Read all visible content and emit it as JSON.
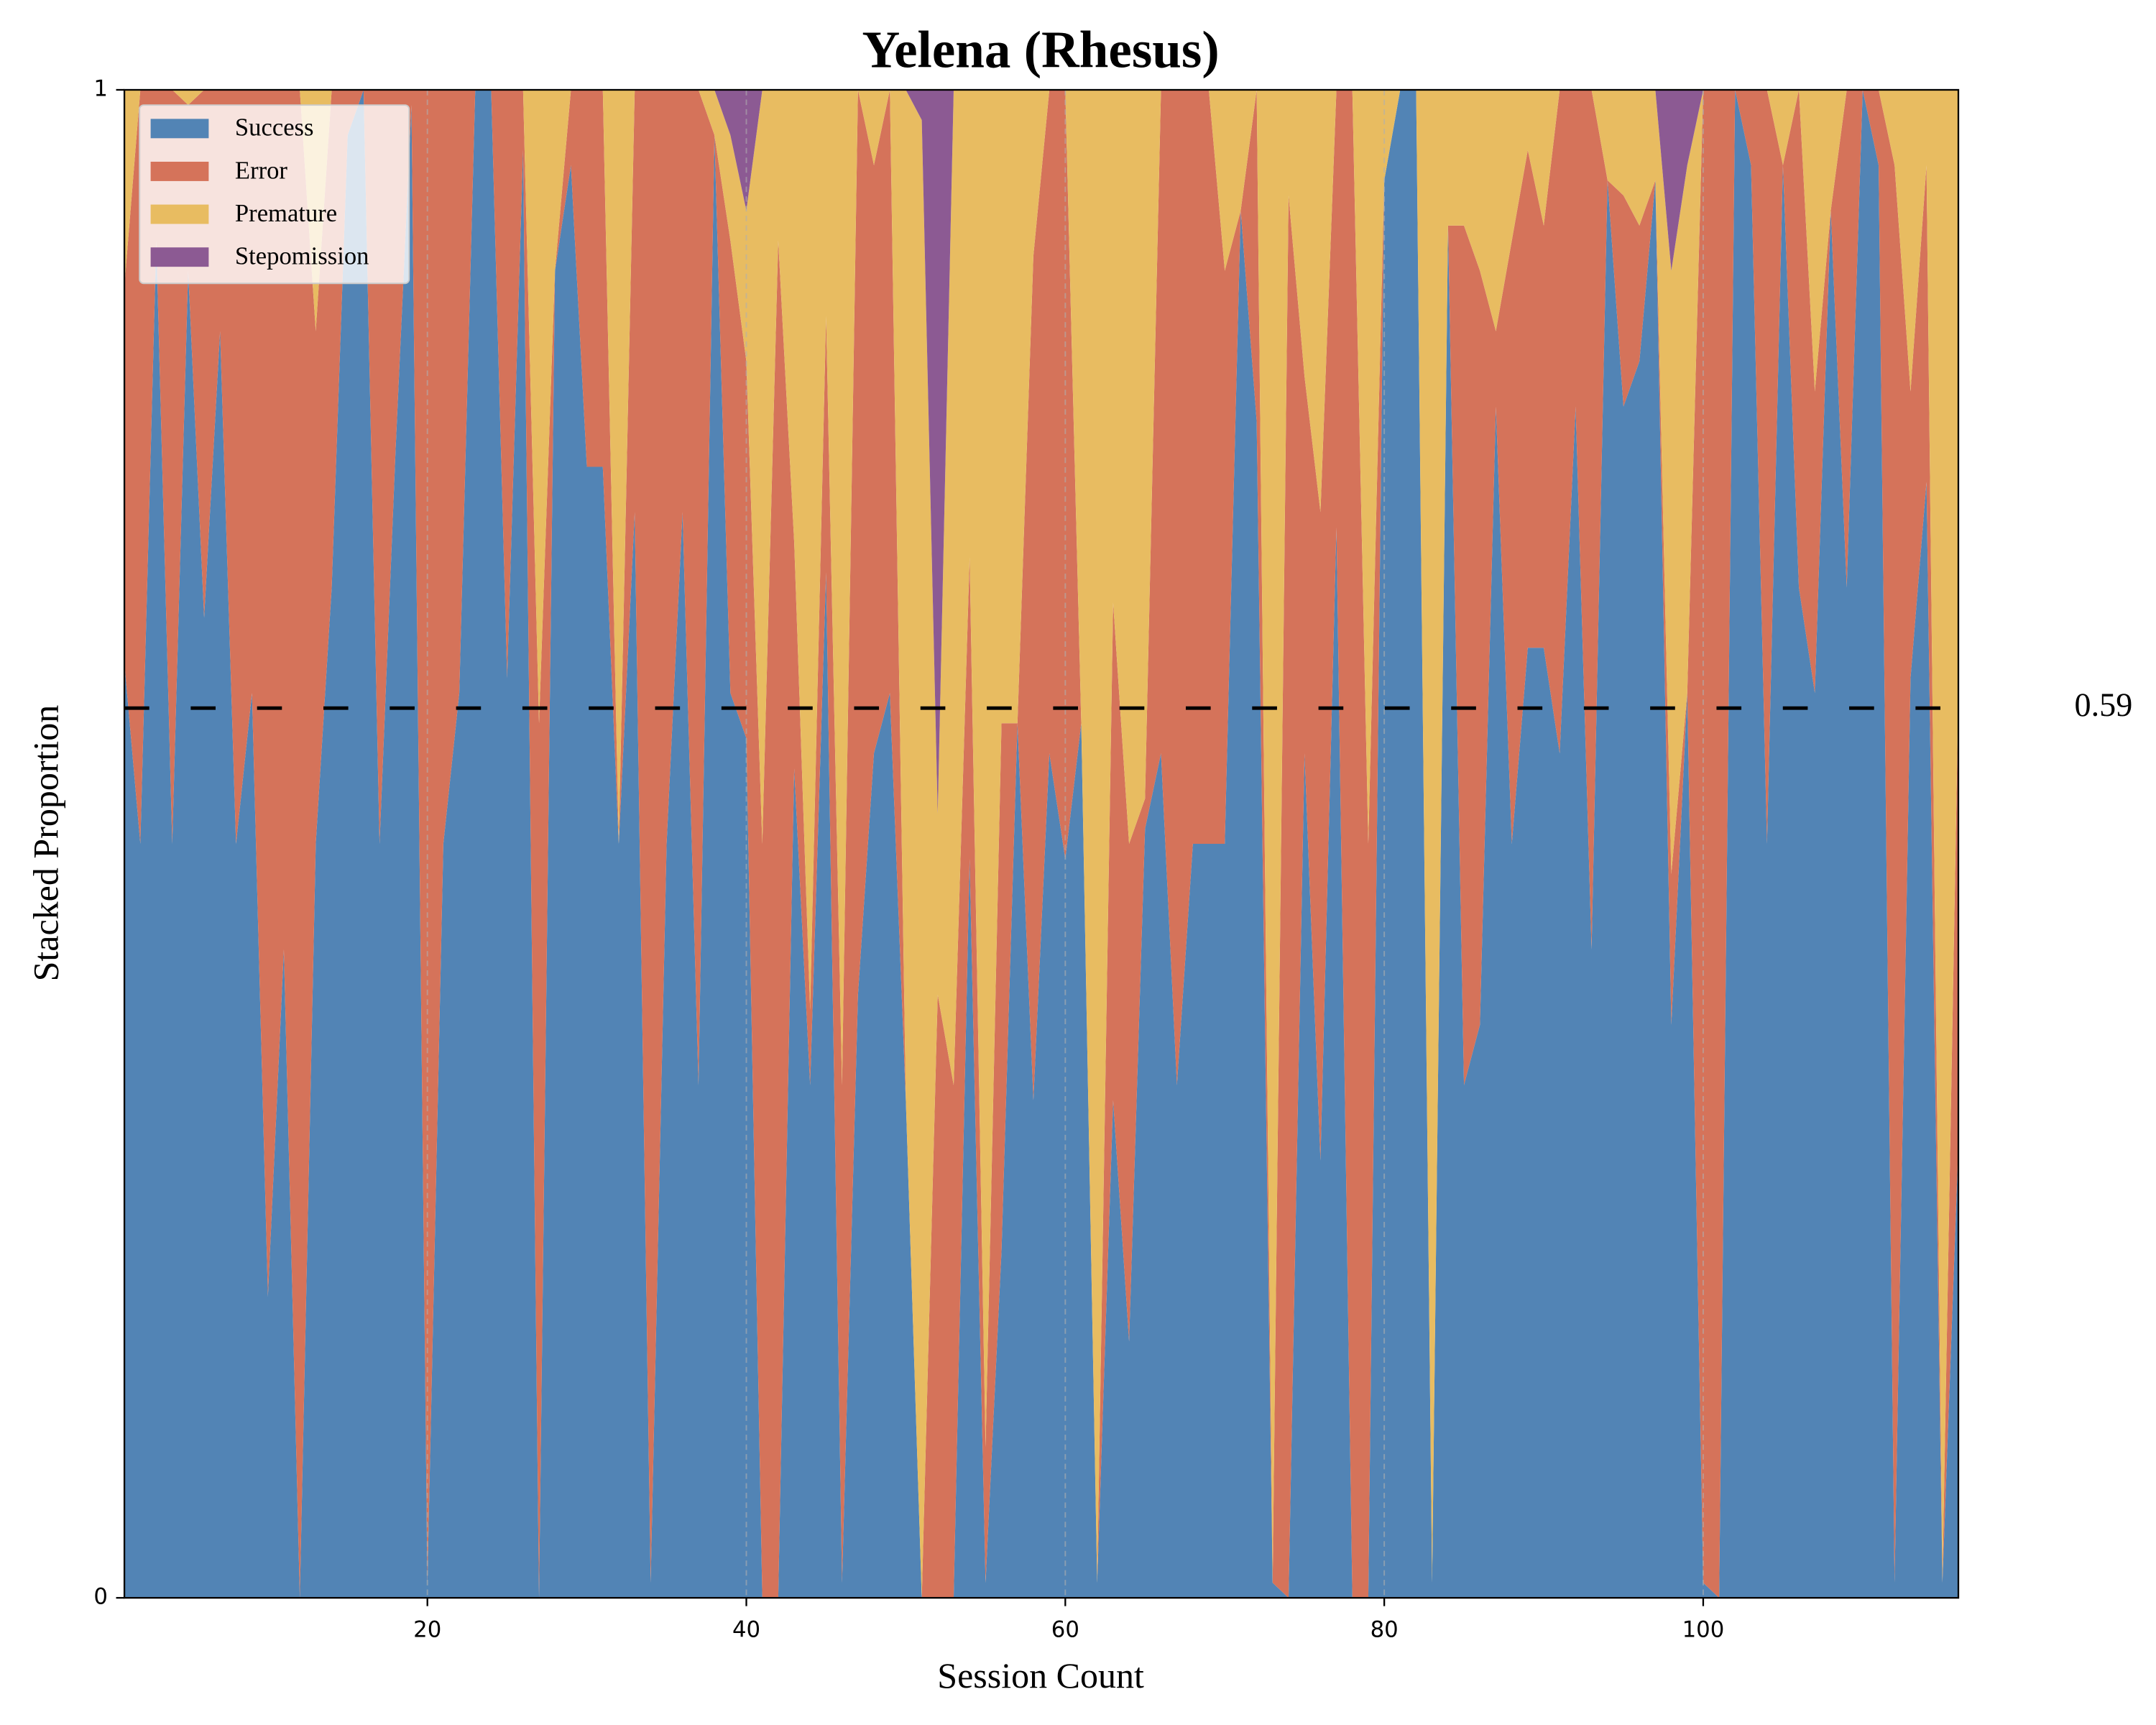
{
  "chart_data": {
    "type": "stacked_area",
    "title": "Yelena (Rhesus)",
    "xlabel": "Session Count",
    "ylabel": "Stacked Proportion",
    "x": [
      1,
      2,
      3,
      4,
      5,
      6,
      7,
      8,
      9,
      10,
      11,
      12,
      13,
      14,
      15,
      16,
      17,
      18,
      19,
      20,
      21,
      22,
      23,
      24,
      25,
      26,
      27,
      28,
      29,
      30,
      31,
      32,
      33,
      34,
      35,
      36,
      37,
      38,
      39,
      40,
      41,
      42,
      43,
      44,
      45,
      46,
      47,
      48,
      49,
      50,
      51,
      52,
      53,
      54,
      55,
      56,
      57,
      58,
      59,
      60,
      61,
      62,
      63,
      64,
      65,
      66,
      67,
      68,
      69,
      70,
      71,
      72,
      73,
      74,
      75,
      76,
      77,
      78,
      79,
      80,
      81,
      82,
      83,
      84,
      85,
      86,
      87,
      88,
      89,
      90,
      91,
      92,
      93,
      94,
      95,
      96,
      97,
      98,
      99,
      100,
      101,
      102,
      103,
      104,
      105,
      106,
      107,
      108,
      109,
      110,
      111,
      112,
      113,
      114,
      115,
      116
    ],
    "series": [
      {
        "name": "Success",
        "color": "#5284b5",
        "values": [
          0.62,
          0.5,
          0.9,
          0.5,
          0.88,
          0.65,
          0.84,
          0.5,
          0.6,
          0.2,
          0.43,
          0,
          0.5,
          0.67,
          0.97,
          1,
          0.5,
          0.76,
          0.99,
          0.01,
          0.5,
          0.6,
          1,
          1,
          0.61,
          0.96,
          0,
          0.88,
          0.95,
          0.75,
          0.75,
          0.5,
          0.72,
          0.01,
          0.5,
          0.72,
          0.34,
          0.97,
          0.6,
          0.57,
          0,
          0,
          0.55,
          0.34,
          0.68,
          0.01,
          0.4,
          0.56,
          0.6,
          0.33,
          0,
          0,
          0,
          0.49,
          0.01,
          0.23,
          0.58,
          0.33,
          0.56,
          0.49,
          0.58,
          0.01,
          0.33,
          0.17,
          0.51,
          0.56,
          0.34,
          0.5,
          0.5,
          0.5,
          0.92,
          0.78,
          0.01,
          0,
          0.56,
          0.29,
          0.71,
          0,
          0,
          0.94,
          1,
          1,
          0.01,
          0.91,
          0.34,
          0.38,
          0.79,
          0.5,
          0.63,
          0.63,
          0.56,
          0.79,
          0.43,
          0.94,
          0.79,
          0.82,
          0.94,
          0.38,
          0.6,
          0.01,
          0,
          1,
          0.95,
          0.5,
          0.95,
          0.67,
          0.6,
          0.92,
          0.67,
          1,
          0.95,
          0.01,
          0.61,
          0.74,
          0.01,
          0.3
        ]
      },
      {
        "name": "Error",
        "color": "#d5735a",
        "values": [
          0.25,
          0.5,
          0.1,
          0.5,
          0.11,
          0.35,
          0.16,
          0.5,
          0.4,
          0.8,
          0.57,
          1,
          0.34,
          0.33,
          0.03,
          0,
          0.5,
          0.24,
          0.01,
          0.99,
          0.5,
          0.4,
          0,
          0,
          0.39,
          0.04,
          0.58,
          0,
          0.05,
          0.25,
          0.25,
          0,
          0.28,
          0.99,
          0.5,
          0.28,
          0.66,
          0,
          0.3,
          0.25,
          0.5,
          0.9,
          0.15,
          0.05,
          0.17,
          0.33,
          0.6,
          0.39,
          0.4,
          0,
          0,
          0.4,
          0.34,
          0.2,
          0.09,
          0.35,
          0,
          0.56,
          0.44,
          0.51,
          0,
          0,
          0.33,
          0.33,
          0.02,
          0.44,
          0.66,
          0.5,
          0.5,
          0.38,
          0,
          0.22,
          0,
          0.93,
          0.25,
          0.43,
          0.29,
          1,
          0.5,
          0,
          0,
          0,
          0,
          0,
          0.57,
          0.5,
          0.05,
          0.4,
          0.33,
          0.28,
          0.44,
          0.21,
          0.57,
          0,
          0.14,
          0.09,
          0,
          0.1,
          0,
          0.99,
          1,
          0,
          0.05,
          0.5,
          0,
          0.33,
          0.2,
          0,
          0.33,
          0,
          0.05,
          0.94,
          0.19,
          0.21,
          0,
          0.3
        ]
      },
      {
        "name": "Premature",
        "color": "#e8bc61",
        "values": [
          0.13,
          0,
          0,
          0,
          0.01,
          0,
          0,
          0,
          0,
          0,
          0,
          0,
          0.16,
          0,
          0,
          0,
          0,
          0,
          0,
          0,
          0,
          0,
          0,
          0,
          0,
          0,
          0.42,
          0.12,
          0,
          0,
          0,
          0.5,
          0,
          0,
          0,
          0,
          0,
          0.03,
          0.07,
          0.1,
          0.5,
          0.1,
          0.3,
          0.61,
          0.15,
          0.66,
          0,
          0.05,
          0,
          0.67,
          0.98,
          0.12,
          0.66,
          0.31,
          0.9,
          0.42,
          0.42,
          0.11,
          0,
          0,
          0.42,
          0.99,
          0.34,
          0.5,
          0.47,
          0,
          0,
          0,
          0,
          0.12,
          0.08,
          0,
          0.99,
          0.07,
          0.19,
          0.28,
          0,
          0,
          0.5,
          0.06,
          0,
          0,
          0.99,
          0.09,
          0.09,
          0.12,
          0.16,
          0.1,
          0.04,
          0.09,
          0,
          0,
          0,
          0.06,
          0.07,
          0.09,
          0.06,
          0.4,
          0.35,
          0,
          0,
          0,
          0,
          0,
          0.05,
          0,
          0.2,
          0.08,
          0,
          0,
          0,
          0.05,
          0.2,
          0.05,
          0.99,
          0.4
        ]
      },
      {
        "name": "Stepomission",
        "color": "#8c5a93",
        "values": [
          0,
          0,
          0,
          0,
          0,
          0,
          0,
          0,
          0,
          0,
          0,
          0,
          0,
          0,
          0,
          0,
          0,
          0,
          0,
          0,
          0,
          0,
          0,
          0,
          0,
          0,
          0,
          0,
          0,
          0,
          0,
          0,
          0,
          0,
          0,
          0,
          0,
          0,
          0.03,
          0.08,
          0,
          0,
          0,
          0,
          0,
          0,
          0,
          0,
          0,
          0,
          0.02,
          0.48,
          0,
          0,
          0,
          0,
          0,
          0,
          0,
          0,
          0,
          0,
          0,
          0,
          0,
          0,
          0,
          0,
          0,
          0,
          0,
          0,
          0,
          0,
          0,
          0,
          0,
          0,
          0,
          0,
          0,
          0,
          0,
          0,
          0,
          0,
          0,
          0,
          0,
          0,
          0,
          0,
          0,
          0,
          0,
          0,
          0,
          0.12,
          0.05,
          0,
          0,
          0,
          0,
          0,
          0,
          0,
          0,
          0,
          0,
          0,
          0,
          0,
          0,
          0,
          0,
          0
        ]
      }
    ],
    "xlim": [
      1,
      116
    ],
    "xticks": [
      20,
      40,
      60,
      80,
      100
    ],
    "ylim": [
      0,
      1
    ],
    "yticks": [
      0,
      1
    ],
    "grid": "x",
    "legend": "upper left",
    "reference_line": {
      "value": 0.59,
      "color": "#000000"
    }
  }
}
